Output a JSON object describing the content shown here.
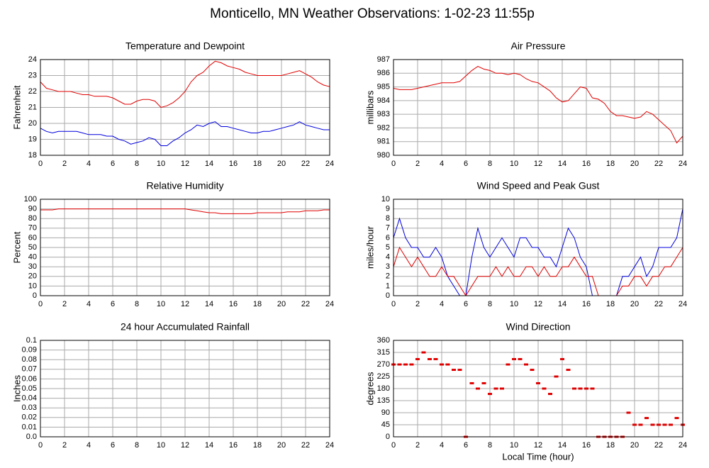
{
  "title": "Monticello, MN Weather Observations: 1-02-23 11:55p",
  "chart_data": [
    {
      "type": "line",
      "title": "Temperature and Dewpoint",
      "ylabel": "Fahrenheit",
      "x": [
        0,
        0.5,
        1,
        1.5,
        2,
        2.5,
        3,
        3.5,
        4,
        4.5,
        5,
        5.5,
        6,
        6.5,
        7,
        7.5,
        8,
        8.5,
        9,
        9.5,
        10,
        10.5,
        11,
        11.5,
        12,
        12.5,
        13,
        13.5,
        14,
        14.5,
        15,
        15.5,
        16,
        16.5,
        17,
        17.5,
        18,
        18.5,
        19,
        19.5,
        20,
        20.5,
        21,
        21.5,
        22,
        22.5,
        23,
        23.5,
        24
      ],
      "series": [
        {
          "color": "#e00000",
          "values": [
            22.6,
            22.2,
            22.1,
            22.0,
            22.0,
            22.0,
            21.9,
            21.8,
            21.8,
            21.7,
            21.7,
            21.7,
            21.6,
            21.4,
            21.2,
            21.2,
            21.4,
            21.5,
            21.5,
            21.4,
            21.0,
            21.1,
            21.3,
            21.6,
            22.0,
            22.6,
            23.0,
            23.2,
            23.6,
            23.9,
            23.8,
            23.6,
            23.5,
            23.4,
            23.2,
            23.1,
            23.0,
            23.0,
            23.0,
            23.0,
            23.0,
            23.1,
            23.2,
            23.3,
            23.1,
            22.9,
            22.6,
            22.4,
            22.3
          ]
        },
        {
          "color": "#0000dd",
          "values": [
            19.7,
            19.5,
            19.4,
            19.5,
            19.5,
            19.5,
            19.5,
            19.4,
            19.3,
            19.3,
            19.3,
            19.2,
            19.2,
            19.0,
            18.9,
            18.7,
            18.8,
            18.9,
            19.1,
            19.0,
            18.6,
            18.6,
            18.9,
            19.1,
            19.4,
            19.6,
            19.9,
            19.8,
            20.0,
            20.1,
            19.8,
            19.8,
            19.7,
            19.6,
            19.5,
            19.4,
            19.4,
            19.5,
            19.5,
            19.6,
            19.7,
            19.8,
            19.9,
            20.1,
            19.9,
            19.8,
            19.7,
            19.6,
            19.6
          ]
        }
      ],
      "xlim": [
        0,
        24
      ],
      "xticks": [
        0,
        2,
        4,
        6,
        8,
        10,
        12,
        14,
        16,
        18,
        20,
        22,
        24
      ],
      "ylim": [
        18,
        24
      ],
      "yticks": [
        18,
        19,
        20,
        21,
        22,
        23,
        24
      ],
      "grid": true
    },
    {
      "type": "line",
      "title": "Air Pressure",
      "ylabel": "millibars",
      "x": [
        0,
        0.5,
        1,
        1.5,
        2,
        2.5,
        3,
        3.5,
        4,
        4.5,
        5,
        5.5,
        6,
        6.5,
        7,
        7.5,
        8,
        8.5,
        9,
        9.5,
        10,
        10.5,
        11,
        11.5,
        12,
        12.5,
        13,
        13.5,
        14,
        14.5,
        15,
        15.5,
        16,
        16.5,
        17,
        17.5,
        18,
        18.5,
        19,
        19.5,
        20,
        20.5,
        21,
        21.5,
        22,
        22.5,
        23,
        23.5,
        24
      ],
      "series": [
        {
          "color": "#e00000",
          "values": [
            984.9,
            984.8,
            984.8,
            984.8,
            984.9,
            985.0,
            985.1,
            985.2,
            985.3,
            985.3,
            985.3,
            985.4,
            985.8,
            986.2,
            986.5,
            986.3,
            986.2,
            986.0,
            986.0,
            985.9,
            986.0,
            985.9,
            985.6,
            985.4,
            985.3,
            985.0,
            984.7,
            984.2,
            983.9,
            984.0,
            984.5,
            985.0,
            984.9,
            984.2,
            984.1,
            983.8,
            983.2,
            982.9,
            982.9,
            982.8,
            982.7,
            982.8,
            983.2,
            983.0,
            982.6,
            982.2,
            981.8,
            980.9,
            981.4
          ]
        }
      ],
      "xlim": [
        0,
        24
      ],
      "xticks": [
        0,
        2,
        4,
        6,
        8,
        10,
        12,
        14,
        16,
        18,
        20,
        22,
        24
      ],
      "ylim": [
        980,
        987
      ],
      "yticks": [
        980,
        981,
        982,
        983,
        984,
        985,
        986,
        987
      ],
      "grid": true
    },
    {
      "type": "line",
      "title": "Relative Humidity",
      "ylabel": "Percent",
      "x": [
        0,
        0.5,
        1,
        1.5,
        2,
        2.5,
        3,
        3.5,
        4,
        4.5,
        5,
        5.5,
        6,
        6.5,
        7,
        7.5,
        8,
        8.5,
        9,
        9.5,
        10,
        10.5,
        11,
        11.5,
        12,
        12.5,
        13,
        13.5,
        14,
        14.5,
        15,
        15.5,
        16,
        16.5,
        17,
        17.5,
        18,
        18.5,
        19,
        19.5,
        20,
        20.5,
        21,
        21.5,
        22,
        22.5,
        23,
        23.5,
        24
      ],
      "series": [
        {
          "color": "#e00000",
          "values": [
            89,
            89,
            89,
            90,
            90,
            90,
            90,
            90,
            90,
            90,
            90,
            90,
            90,
            90,
            90,
            90,
            90,
            90,
            90,
            90,
            90,
            90,
            90,
            90,
            90,
            89,
            88,
            87,
            86,
            86,
            85,
            85,
            85,
            85,
            85,
            85,
            86,
            86,
            86,
            86,
            86,
            87,
            87,
            87,
            88,
            88,
            88,
            89,
            89
          ]
        }
      ],
      "xlim": [
        0,
        24
      ],
      "xticks": [
        0,
        2,
        4,
        6,
        8,
        10,
        12,
        14,
        16,
        18,
        20,
        22,
        24
      ],
      "ylim": [
        0,
        100
      ],
      "yticks": [
        0,
        10,
        20,
        30,
        40,
        50,
        60,
        70,
        80,
        90,
        100
      ],
      "grid": true
    },
    {
      "type": "line",
      "title": "Wind Speed and Peak Gust",
      "ylabel": "miles/hour",
      "x": [
        0,
        0.5,
        1,
        1.5,
        2,
        2.5,
        3,
        3.5,
        4,
        4.5,
        5,
        5.5,
        6,
        6.5,
        7,
        7.5,
        8,
        8.5,
        9,
        9.5,
        10,
        10.5,
        11,
        11.5,
        12,
        12.5,
        13,
        13.5,
        14,
        14.5,
        15,
        15.5,
        16,
        16.5,
        17,
        17.5,
        18,
        18.5,
        19,
        19.5,
        20,
        20.5,
        21,
        21.5,
        22,
        22.5,
        23,
        23.5,
        24
      ],
      "series": [
        {
          "color": "#0000dd",
          "values": [
            6,
            8,
            6,
            5,
            5,
            4,
            4,
            5,
            4,
            2,
            1,
            0,
            0,
            4,
            7,
            5,
            4,
            5,
            6,
            5,
            4,
            6,
            6,
            5,
            5,
            4,
            4,
            3,
            5,
            7,
            6,
            4,
            3,
            0,
            0,
            0,
            0,
            0,
            2,
            2,
            3,
            4,
            2,
            3,
            5,
            5,
            5,
            6,
            9
          ]
        },
        {
          "color": "#e00000",
          "values": [
            3,
            5,
            4,
            3,
            4,
            3,
            2,
            2,
            3,
            2,
            2,
            1,
            0,
            1,
            2,
            2,
            2,
            3,
            2,
            3,
            2,
            2,
            3,
            3,
            2,
            3,
            2,
            2,
            3,
            3,
            4,
            3,
            2,
            2,
            0,
            0,
            0,
            0,
            1,
            1,
            2,
            2,
            1,
            2,
            2,
            3,
            3,
            4,
            5
          ]
        }
      ],
      "xlim": [
        0,
        24
      ],
      "xticks": [
        0,
        2,
        4,
        6,
        8,
        10,
        12,
        14,
        16,
        18,
        20,
        22,
        24
      ],
      "ylim": [
        0,
        10
      ],
      "yticks": [
        0,
        1,
        2,
        3,
        4,
        5,
        6,
        7,
        8,
        9,
        10
      ],
      "grid": true
    },
    {
      "type": "line",
      "title": "24 hour Accumulated Rainfall",
      "ylabel": "Inches",
      "x": [
        0,
        24
      ],
      "series": [
        {
          "color": "#e00000",
          "values": [
            0,
            0
          ]
        }
      ],
      "xlim": [
        0,
        24
      ],
      "xticks": [
        0,
        2,
        4,
        6,
        8,
        10,
        12,
        14,
        16,
        18,
        20,
        22,
        24
      ],
      "ylim": [
        0,
        0.1
      ],
      "yticks": [
        {
          "value": 0,
          "label": "0.0"
        },
        0.01,
        0.02,
        0.03,
        0.04,
        0.05,
        0.06,
        0.07,
        0.08,
        0.09,
        0.1
      ],
      "grid": true
    },
    {
      "type": "scatter",
      "title": "Wind Direction",
      "ylabel": "degrees",
      "xlabel": "Local Time (hour)",
      "x": [
        0,
        0.5,
        1,
        1.5,
        2,
        2.5,
        3,
        3.5,
        4,
        4.5,
        5,
        5.5,
        6,
        6.5,
        7,
        7.5,
        8,
        8.5,
        9,
        9.5,
        10,
        10.5,
        11,
        11.5,
        12,
        12.5,
        13,
        13.5,
        14,
        14.5,
        15,
        15.5,
        16,
        16.5,
        17,
        17.5,
        18,
        18.5,
        19,
        19.5,
        20,
        20.5,
        21,
        21.5,
        22,
        22.5,
        23,
        23.5,
        24
      ],
      "series": [
        {
          "color": "#e00000",
          "values": [
            270,
            270,
            270,
            270,
            290,
            315,
            290,
            290,
            270,
            270,
            250,
            250,
            0,
            200,
            180,
            200,
            160,
            180,
            180,
            270,
            290,
            290,
            270,
            250,
            200,
            180,
            160,
            225,
            290,
            250,
            180,
            180,
            180,
            180,
            0,
            0,
            0,
            0,
            0,
            90,
            45,
            45,
            70,
            45,
            45,
            45,
            45,
            70,
            45
          ]
        }
      ],
      "xlim": [
        0,
        24
      ],
      "xticks": [
        0,
        2,
        4,
        6,
        8,
        10,
        12,
        14,
        16,
        18,
        20,
        22,
        24
      ],
      "ylim": [
        0,
        360
      ],
      "yticks": [
        0,
        45,
        90,
        135,
        180,
        225,
        270,
        315,
        360
      ],
      "grid": true
    }
  ]
}
